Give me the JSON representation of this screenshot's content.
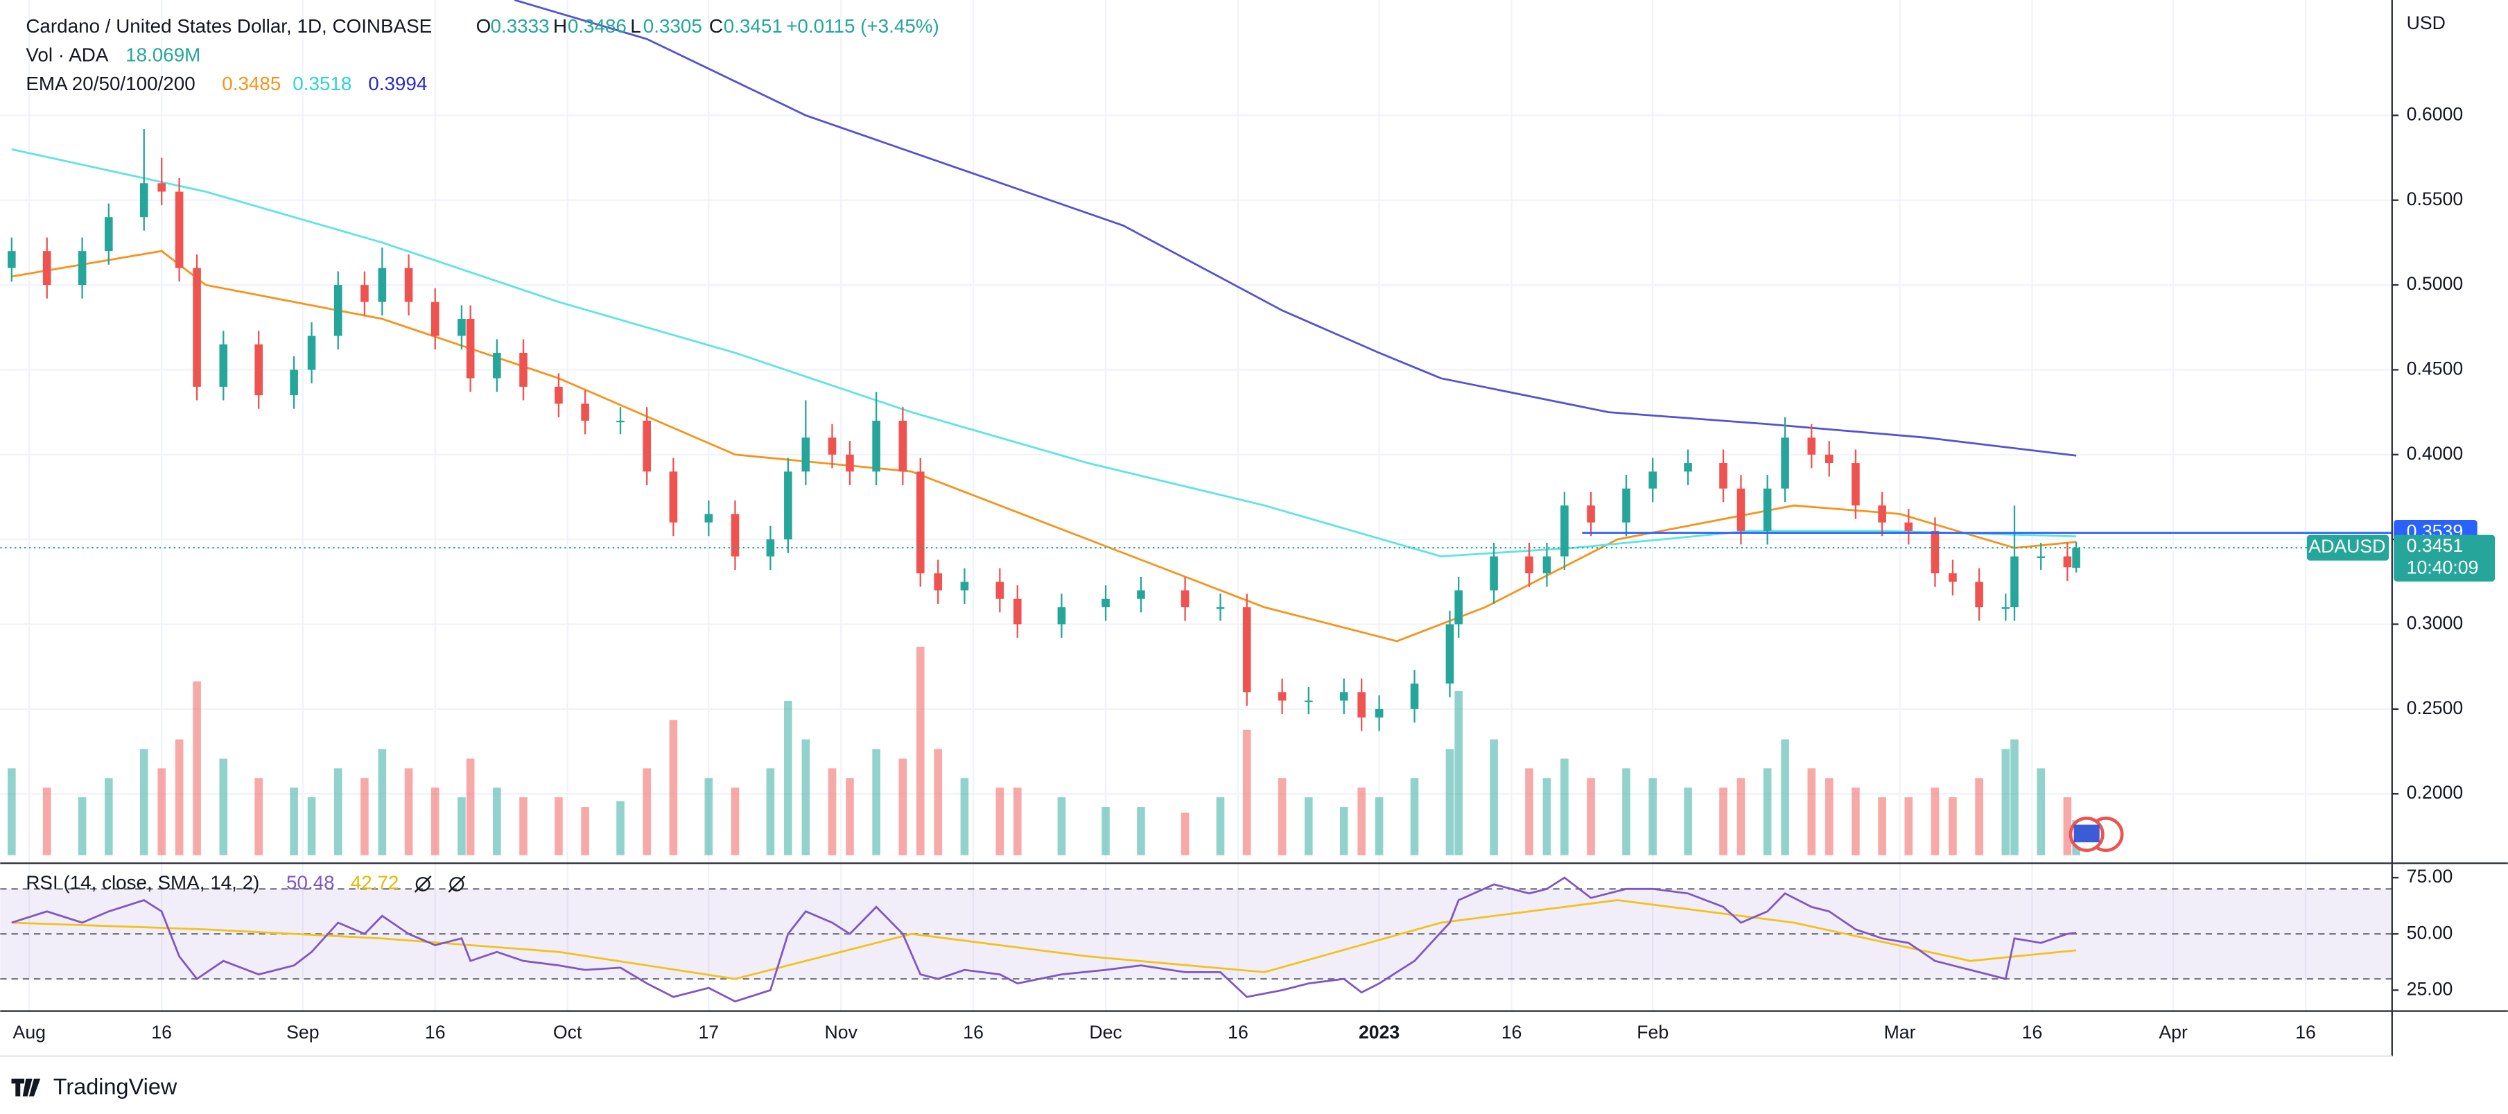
{
  "chart_data": {
    "type": "candlestick",
    "title": "Cardano / United States Dollar, 1D, COINBASE",
    "ohlc_letters": [
      "O",
      "H",
      "L",
      "C"
    ],
    "change_label": "+0.0115 (+3.45%)",
    "currency": "USD",
    "up_color": "#26a69a",
    "down_color": "#ef5350",
    "x": [
      -2,
      2,
      6,
      9,
      13,
      15,
      17,
      19,
      22,
      26,
      30,
      32,
      35,
      38,
      40,
      43,
      46,
      49,
      50,
      53,
      56,
      60,
      63,
      67,
      70,
      73,
      77,
      80,
      84,
      86,
      88,
      91,
      93,
      96,
      99,
      101,
      103,
      106,
      110,
      112,
      117,
      122,
      126,
      131,
      135,
      138,
      142,
      145,
      149,
      151,
      153,
      157,
      161,
      162,
      166,
      170,
      172,
      174,
      177,
      181,
      184,
      188,
      192,
      194,
      197,
      199,
      202,
      204,
      207,
      210,
      213,
      216,
      218,
      221,
      224,
      225,
      228,
      231,
      232
    ],
    "open": [
      0.51,
      0.52,
      0.5,
      0.52,
      0.54,
      0.56,
      0.555,
      0.51,
      0.44,
      0.465,
      0.435,
      0.45,
      0.47,
      0.5,
      0.49,
      0.51,
      0.49,
      0.47,
      0.48,
      0.445,
      0.46,
      0.44,
      0.43,
      0.42,
      0.42,
      0.39,
      0.36,
      0.365,
      0.34,
      0.35,
      0.39,
      0.41,
      0.4,
      0.39,
      0.42,
      0.39,
      0.33,
      0.32,
      0.325,
      0.315,
      0.3,
      0.31,
      0.315,
      0.32,
      0.31,
      0.31,
      0.26,
      0.255,
      0.255,
      0.26,
      0.245,
      0.25,
      0.265,
      0.3,
      0.32,
      0.34,
      0.33,
      0.34,
      0.37,
      0.36,
      0.38,
      0.39,
      0.395,
      0.38,
      0.355,
      0.38,
      0.41,
      0.4,
      0.395,
      0.37,
      0.36,
      0.355,
      0.33,
      0.325,
      0.31,
      0.31,
      0.34,
      0.34,
      0.3333
    ],
    "high": [
      0.528,
      0.528,
      0.528,
      0.548,
      0.592,
      0.575,
      0.563,
      0.518,
      0.473,
      0.473,
      0.458,
      0.478,
      0.508,
      0.508,
      0.522,
      0.518,
      0.498,
      0.488,
      0.488,
      0.468,
      0.468,
      0.448,
      0.438,
      0.428,
      0.428,
      0.398,
      0.373,
      0.373,
      0.358,
      0.398,
      0.432,
      0.418,
      0.408,
      0.437,
      0.428,
      0.398,
      0.338,
      0.333,
      0.333,
      0.323,
      0.318,
      0.323,
      0.328,
      0.328,
      0.318,
      0.318,
      0.268,
      0.263,
      0.268,
      0.268,
      0.258,
      0.273,
      0.308,
      0.328,
      0.348,
      0.348,
      0.348,
      0.378,
      0.378,
      0.388,
      0.398,
      0.403,
      0.403,
      0.388,
      0.388,
      0.422,
      0.418,
      0.408,
      0.403,
      0.378,
      0.368,
      0.363,
      0.338,
      0.333,
      0.318,
      0.37,
      0.348,
      0.348,
      0.3486
    ],
    "low": [
      0.502,
      0.492,
      0.492,
      0.512,
      0.532,
      0.547,
      0.502,
      0.432,
      0.432,
      0.427,
      0.427,
      0.442,
      0.462,
      0.482,
      0.482,
      0.482,
      0.462,
      0.462,
      0.437,
      0.437,
      0.432,
      0.422,
      0.412,
      0.412,
      0.382,
      0.352,
      0.352,
      0.332,
      0.332,
      0.342,
      0.382,
      0.392,
      0.382,
      0.382,
      0.382,
      0.322,
      0.312,
      0.312,
      0.307,
      0.292,
      0.292,
      0.302,
      0.307,
      0.302,
      0.302,
      0.252,
      0.247,
      0.247,
      0.247,
      0.237,
      0.237,
      0.242,
      0.257,
      0.292,
      0.312,
      0.322,
      0.322,
      0.332,
      0.352,
      0.352,
      0.372,
      0.382,
      0.372,
      0.347,
      0.347,
      0.372,
      0.392,
      0.387,
      0.362,
      0.352,
      0.347,
      0.322,
      0.317,
      0.302,
      0.302,
      0.302,
      0.332,
      0.3256,
      0.3305
    ],
    "close": [
      0.52,
      0.5,
      0.52,
      0.54,
      0.56,
      0.555,
      0.51,
      0.44,
      0.465,
      0.435,
      0.45,
      0.47,
      0.5,
      0.49,
      0.51,
      0.49,
      0.47,
      0.48,
      0.445,
      0.46,
      0.44,
      0.43,
      0.42,
      0.42,
      0.39,
      0.36,
      0.365,
      0.34,
      0.35,
      0.39,
      0.41,
      0.4,
      0.39,
      0.42,
      0.39,
      0.33,
      0.32,
      0.325,
      0.315,
      0.3,
      0.31,
      0.315,
      0.32,
      0.31,
      0.31,
      0.26,
      0.255,
      0.255,
      0.26,
      0.245,
      0.25,
      0.265,
      0.3,
      0.32,
      0.34,
      0.33,
      0.34,
      0.37,
      0.36,
      0.38,
      0.39,
      0.395,
      0.38,
      0.355,
      0.38,
      0.41,
      0.4,
      0.395,
      0.37,
      0.36,
      0.355,
      0.33,
      0.325,
      0.31,
      0.31,
      0.34,
      0.34,
      0.3336,
      0.3451
    ],
    "xlim": [
      -3.3,
      267.8
    ],
    "xticks": [
      {
        "value": 0,
        "label": "Aug"
      },
      {
        "value": 15,
        "label": "16"
      },
      {
        "value": 31,
        "label": "Sep"
      },
      {
        "value": 46,
        "label": "16"
      },
      {
        "value": 61,
        "label": "Oct"
      },
      {
        "value": 77,
        "label": "17"
      },
      {
        "value": 92,
        "label": "Nov"
      },
      {
        "value": 107,
        "label": "16"
      },
      {
        "value": 122,
        "label": "Dec"
      },
      {
        "value": 137,
        "label": "16"
      },
      {
        "value": 153,
        "label": "2023"
      },
      {
        "value": 168,
        "label": "16"
      },
      {
        "value": 184,
        "label": "Feb"
      },
      {
        "value": 212,
        "label": "Mar"
      },
      {
        "value": 227,
        "label": "16"
      },
      {
        "value": 243,
        "label": "Apr"
      },
      {
        "value": 258,
        "label": "16"
      }
    ],
    "ylim": [
      0.161,
      0.668
    ],
    "yticks": [
      {
        "value": 0.2,
        "label": "0.2000"
      },
      {
        "value": 0.25,
        "label": "0.2500"
      },
      {
        "value": 0.3,
        "label": "0.3000"
      },
      {
        "value": 0.35,
        "label": "0.3500"
      },
      {
        "value": 0.4,
        "label": "0.4000"
      },
      {
        "value": 0.45,
        "label": "0.4500"
      },
      {
        "value": 0.5,
        "label": "0.5000"
      },
      {
        "value": 0.55,
        "label": "0.5500"
      },
      {
        "value": 0.6,
        "label": "0.6000"
      }
    ],
    "grid": true,
    "volume": {
      "name": "Vol · ADA",
      "value_label": "18.069M",
      "ylim": [
        0,
        443
      ],
      "values": [
        45,
        35,
        30,
        40,
        55,
        45,
        60,
        90,
        50,
        40,
        35,
        30,
        45,
        40,
        55,
        45,
        35,
        30,
        50,
        35,
        30,
        30,
        25,
        28,
        45,
        70,
        40,
        35,
        45,
        80,
        60,
        45,
        40,
        55,
        50,
        108,
        55,
        40,
        35,
        35,
        30,
        25,
        25,
        22,
        30,
        65,
        40,
        30,
        25,
        35,
        30,
        40,
        55,
        85,
        60,
        45,
        40,
        50,
        40,
        45,
        40,
        35,
        35,
        40,
        45,
        60,
        45,
        40,
        35,
        30,
        30,
        35,
        30,
        40,
        55,
        60,
        45,
        30,
        18.069
      ]
    },
    "ema": {
      "name": "EMA 20/50/100/200",
      "series": [
        {
          "color": "#f7931a",
          "x": [
            -2,
            15,
            20,
            40,
            60,
            80,
            100,
            120,
            140,
            155,
            165,
            180,
            200,
            212,
            225,
            232
          ],
          "values": [
            0.505,
            0.52,
            0.5,
            0.48,
            0.445,
            0.4,
            0.39,
            0.35,
            0.31,
            0.29,
            0.31,
            0.35,
            0.37,
            0.365,
            0.345,
            0.3485
          ]
        },
        {
          "color": "#5fe3e3",
          "x": [
            -2,
            20,
            40,
            60,
            80,
            100,
            120,
            140,
            160,
            175,
            195,
            210,
            232
          ],
          "values": [
            0.58,
            0.555,
            0.525,
            0.49,
            0.46,
            0.425,
            0.395,
            0.37,
            0.34,
            0.345,
            0.355,
            0.355,
            0.3518
          ]
        },
        {
          "color": "#5252d4",
          "x": [
            55,
            70,
            88,
            124,
            142,
            153,
            160,
            179,
            197,
            215,
            232
          ],
          "values": [
            0.668,
            0.645,
            0.6,
            0.535,
            0.485,
            0.46,
            0.445,
            0.425,
            0.418,
            0.41,
            0.3994
          ]
        }
      ]
    },
    "level_line": {
      "value": 0.3539,
      "color": "#2962ff",
      "x": 176
    },
    "price_tag": "ADAUSD",
    "countdown": "10:40:09",
    "rsi": {
      "name": "RSI (14, close, SMA, 14, 2)",
      "color": "#7e57c2",
      "values": [
        55,
        60,
        55,
        60,
        65,
        60,
        40,
        30,
        38,
        32,
        36,
        42,
        55,
        50,
        58,
        50,
        45,
        48,
        38,
        42,
        38,
        36,
        34,
        35,
        28,
        22,
        26,
        20,
        25,
        50,
        60,
        55,
        50,
        62,
        50,
        32,
        30,
        34,
        32,
        28,
        32,
        34,
        36,
        33,
        33,
        22,
        25,
        28,
        30,
        24,
        28,
        38,
        55,
        65,
        72,
        68,
        70,
        75,
        66,
        70,
        70,
        68,
        62,
        55,
        60,
        68,
        62,
        60,
        52,
        48,
        46,
        38,
        36,
        33,
        30,
        48,
        46,
        50,
        50.48
      ],
      "sma": {
        "color": "#f2c21b",
        "x": [
          -2,
          20,
          40,
          60,
          80,
          100,
          120,
          140,
          160,
          180,
          200,
          220,
          232
        ],
        "values": [
          55,
          52,
          48,
          42,
          30,
          50,
          40,
          33,
          55,
          65,
          55,
          38,
          42.72
        ]
      },
      "ylim": [
        16.4,
        80.7
      ],
      "yticks": [
        {
          "value": 25,
          "label": "25.00"
        },
        {
          "value": 50,
          "label": "50.00"
        },
        {
          "value": 75,
          "label": "75.00"
        }
      ],
      "levels": [
        70,
        50,
        30
      ]
    },
    "brand": "TradingView"
  }
}
